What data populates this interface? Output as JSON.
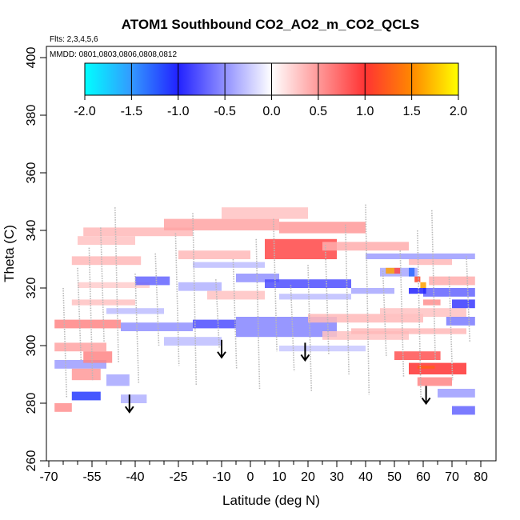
{
  "chart_data": {
    "type": "heatmap",
    "title": "ATOM1 Southbound CO2_AO2_m_CO2_QCLS",
    "flights_note": "Flts: 2,3,4,5,6",
    "dates_note": "MMDD: 0801,0803,0806,0808,0812",
    "xlabel": "Latitude (deg N)",
    "ylabel": "Theta (C)",
    "xlim": [
      -70,
      80
    ],
    "ylim": [
      260,
      400
    ],
    "x_ticks": [
      "-70",
      "-55",
      "-40",
      "-25",
      "-10",
      "0",
      "10",
      "20",
      "30",
      "40",
      "50",
      "60",
      "70",
      "80"
    ],
    "x_tick_values": [
      -70,
      -55,
      -40,
      -25,
      -10,
      0,
      10,
      20,
      30,
      40,
      50,
      60,
      70,
      80
    ],
    "x_minor_ticks": [
      -65,
      -60,
      -50,
      -45,
      -35,
      -30,
      -20,
      -15,
      -5,
      5,
      15,
      25,
      35,
      45,
      55,
      65,
      75
    ],
    "y_ticks": [
      "260",
      "280",
      "300",
      "320",
      "340",
      "360",
      "380",
      "400"
    ],
    "y_tick_values": [
      260,
      280,
      300,
      320,
      340,
      360,
      380,
      400
    ],
    "colorbar": {
      "range": [
        -2.0,
        2.0
      ],
      "ticks": [
        "-2.0",
        "-1.5",
        "-1.0",
        "-0.5",
        "0.0",
        "0.5",
        "1.0",
        "1.5",
        "2.0"
      ],
      "colors": [
        "#00ffff",
        "#3399ff",
        "#2222ff",
        "#ffffff",
        "#ff3333",
        "#ff8800",
        "#ffff00"
      ]
    },
    "arrows": [
      {
        "lat": -42,
        "theta": 283
      },
      {
        "lat": -10,
        "theta": 302
      },
      {
        "lat": 19,
        "theta": 301
      },
      {
        "lat": 61,
        "theta": 286
      }
    ],
    "cells": [
      {
        "lat0": -58,
        "lat1": -20,
        "th0": 338,
        "th1": 341,
        "value": 0.35
      },
      {
        "lat0": -30,
        "lat1": 10,
        "th0": 340,
        "th1": 344,
        "value": 0.45
      },
      {
        "lat0": -10,
        "lat1": 20,
        "th0": 344,
        "th1": 348,
        "value": 0.3
      },
      {
        "lat0": 10,
        "lat1": 40,
        "th0": 339,
        "th1": 343,
        "value": 0.5
      },
      {
        "lat0": 5,
        "lat1": 30,
        "th0": 330,
        "th1": 337,
        "value": 0.9
      },
      {
        "lat0": 25,
        "lat1": 55,
        "th0": 333,
        "th1": 336,
        "value": 0.4
      },
      {
        "lat0": -25,
        "lat1": 0,
        "th0": 330,
        "th1": 333,
        "value": 0.35
      },
      {
        "lat0": -20,
        "lat1": 5,
        "th0": 327,
        "th1": 329,
        "value": -0.3
      },
      {
        "lat0": -62,
        "lat1": -38,
        "th0": 328,
        "th1": 331,
        "value": 0.35
      },
      {
        "lat0": -60,
        "lat1": -35,
        "th0": 320,
        "th1": 322,
        "value": 0.25
      },
      {
        "lat0": -40,
        "lat1": -28,
        "th0": 321,
        "th1": 324,
        "value": -0.7
      },
      {
        "lat0": -25,
        "lat1": -10,
        "th0": 319,
        "th1": 322,
        "value": -0.35
      },
      {
        "lat0": -15,
        "lat1": 5,
        "th0": 316,
        "th1": 319,
        "value": 0.3
      },
      {
        "lat0": -5,
        "lat1": 10,
        "th0": 322,
        "th1": 325,
        "value": -0.5
      },
      {
        "lat0": 5,
        "lat1": 35,
        "th0": 320,
        "th1": 323,
        "value": -0.8
      },
      {
        "lat0": 10,
        "lat1": 35,
        "th0": 316,
        "th1": 318,
        "value": -0.3
      },
      {
        "lat0": -62,
        "lat1": -40,
        "th0": 314,
        "th1": 316,
        "value": 0.3
      },
      {
        "lat0": -50,
        "lat1": -30,
        "th0": 311,
        "th1": 313,
        "value": -0.3
      },
      {
        "lat0": -68,
        "lat1": -45,
        "th0": 306,
        "th1": 309,
        "value": 0.6
      },
      {
        "lat0": -45,
        "lat1": -20,
        "th0": 305,
        "th1": 308,
        "value": -0.5
      },
      {
        "lat0": -20,
        "lat1": -5,
        "th0": 306,
        "th1": 309,
        "value": -0.8
      },
      {
        "lat0": -5,
        "lat1": 30,
        "th0": 303,
        "th1": 310,
        "value": -0.55
      },
      {
        "lat0": 20,
        "lat1": 60,
        "th0": 308,
        "th1": 311,
        "value": 0.35
      },
      {
        "lat0": 25,
        "lat1": 55,
        "th0": 302,
        "th1": 305,
        "value": 0.3
      },
      {
        "lat0": 35,
        "lat1": 75,
        "th0": 304,
        "th1": 306,
        "value": 0.35
      },
      {
        "lat0": -68,
        "lat1": -50,
        "th0": 298,
        "th1": 301,
        "value": 0.45
      },
      {
        "lat0": -68,
        "lat1": -50,
        "th0": 292,
        "th1": 295,
        "value": -0.45
      },
      {
        "lat0": -62,
        "lat1": -52,
        "th0": 288,
        "th1": 292,
        "value": 0.5
      },
      {
        "lat0": -62,
        "lat1": -52,
        "th0": 281,
        "th1": 284,
        "value": -1.1
      },
      {
        "lat0": -50,
        "lat1": -42,
        "th0": 286,
        "th1": 290,
        "value": -0.4
      },
      {
        "lat0": -58,
        "lat1": -48,
        "th0": 294,
        "th1": 298,
        "value": 0.6
      },
      {
        "lat0": 50,
        "lat1": 66,
        "th0": 295,
        "th1": 298,
        "value": 0.85
      },
      {
        "lat0": 55,
        "lat1": 75,
        "th0": 290,
        "th1": 294,
        "value": 1.0
      },
      {
        "lat0": 58,
        "lat1": 70,
        "th0": 286,
        "th1": 289,
        "value": 0.6
      },
      {
        "lat0": 58,
        "lat1": 64,
        "th0": 292,
        "th1": 293,
        "value": 1.25
      },
      {
        "lat0": 65,
        "lat1": 78,
        "th0": 282,
        "th1": 285,
        "value": -0.45
      },
      {
        "lat0": 70,
        "lat1": 78,
        "th0": 276,
        "th1": 279,
        "value": -0.7
      },
      {
        "lat0": 45,
        "lat1": 75,
        "th0": 310,
        "th1": 313,
        "value": 0.3
      },
      {
        "lat0": 35,
        "lat1": 50,
        "th0": 318,
        "th1": 320,
        "value": -0.4
      },
      {
        "lat0": 60,
        "lat1": 78,
        "th0": 317,
        "th1": 320,
        "value": -0.7
      },
      {
        "lat0": 62,
        "lat1": 78,
        "th0": 321,
        "th1": 324,
        "value": 0.4
      },
      {
        "lat0": 55,
        "lat1": 70,
        "th0": 328,
        "th1": 330,
        "value": 0.35
      },
      {
        "lat0": 45,
        "lat1": 58,
        "th0": 324,
        "th1": 327,
        "value": -0.4
      },
      {
        "lat0": 40,
        "lat1": 78,
        "th0": 330,
        "th1": 332,
        "value": -0.45
      },
      {
        "lat0": 47,
        "lat1": 50,
        "th0": 325,
        "th1": 327,
        "value": 1.6
      },
      {
        "lat0": 50,
        "lat1": 52,
        "th0": 325,
        "th1": 327,
        "value": 0.9
      },
      {
        "lat0": 55,
        "lat1": 57,
        "th0": 324,
        "th1": 327,
        "value": -1.3
      },
      {
        "lat0": 57,
        "lat1": 59,
        "th0": 322,
        "th1": 324,
        "value": 1.1
      },
      {
        "lat0": 59,
        "lat1": 61,
        "th0": 320,
        "th1": 322,
        "value": 1.6
      },
      {
        "lat0": 55,
        "lat1": 61,
        "th0": 318,
        "th1": 320,
        "value": -1.0
      },
      {
        "lat0": 60,
        "lat1": 66,
        "th0": 314,
        "th1": 316,
        "value": 0.55
      },
      {
        "lat0": 68,
        "lat1": 78,
        "th0": 307,
        "th1": 310,
        "value": -0.6
      },
      {
        "lat0": 70,
        "lat1": 78,
        "th0": 313,
        "th1": 316,
        "value": -0.9
      },
      {
        "lat0": -68,
        "lat1": -62,
        "th0": 277,
        "th1": 280,
        "value": 0.55
      },
      {
        "lat0": -45,
        "lat1": -36,
        "th0": 280,
        "th1": 283,
        "value": -0.35
      },
      {
        "lat0": -30,
        "lat1": -10,
        "th0": 300,
        "th1": 303,
        "value": -0.3
      },
      {
        "lat0": 10,
        "lat1": 40,
        "th0": 298,
        "th1": 300,
        "value": -0.25
      },
      {
        "lat0": -60,
        "lat1": -40,
        "th0": 335,
        "th1": 338,
        "value": 0.3
      }
    ]
  }
}
